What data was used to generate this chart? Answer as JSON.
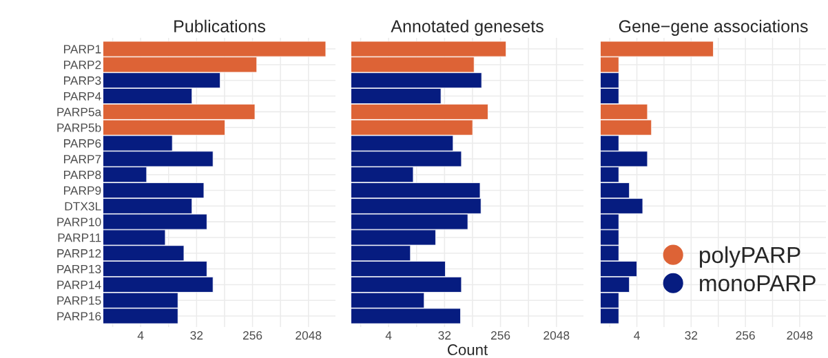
{
  "chart_data": [
    {
      "type": "bar",
      "title": "Publications",
      "orientation": "horizontal",
      "log": "x",
      "grid": true,
      "categories": [
        "PARP1",
        "PARP2",
        "PARP3",
        "PARP4",
        "PARP5a",
        "PARP5b",
        "PARP6",
        "PARP7",
        "PARP8",
        "PARP9",
        "DTX3L",
        "PARP10",
        "PARP11",
        "PARP12",
        "PARP13",
        "PARP14",
        "PARP15",
        "PARP16"
      ],
      "series": [
        {
          "color": "#dd6336",
          "values": [
            3900,
            300,
            null,
            null,
            280,
            92,
            null,
            null,
            null,
            null,
            null,
            null,
            null,
            null,
            null,
            null,
            null,
            null
          ]
        },
        {
          "color": "#061c80",
          "values": [
            null,
            null,
            77,
            27,
            null,
            null,
            13,
            59,
            5,
            42,
            27,
            47,
            10,
            20,
            47,
            59,
            16,
            16
          ]
        }
      ],
      "xlim": [
        1,
        5600
      ],
      "xticks": [
        {
          "value": 1.414,
          "label": null
        },
        4,
        {
          "value": 11.31,
          "label": null
        },
        32,
        {
          "value": 90.5,
          "label": null
        },
        256,
        {
          "value": 724,
          "label": null
        },
        2048
      ]
    },
    {
      "type": "bar",
      "title": "Annotated genesets",
      "xlabel": "Count",
      "orientation": "horizontal",
      "log": "x",
      "grid": true,
      "tick_labels": "x",
      "categories": [
        null,
        null,
        null,
        null,
        null,
        null,
        null,
        null,
        null,
        null,
        null,
        null,
        null,
        null,
        null,
        null,
        null,
        null
      ],
      "series": [
        {
          "color": "#dd6336",
          "values": [
            315,
            96,
            null,
            null,
            161,
            91,
            null,
            null,
            null,
            null,
            null,
            null,
            null,
            null,
            null,
            null,
            null,
            null
          ]
        },
        {
          "color": "#061c80",
          "values": [
            null,
            null,
            127,
            28,
            null,
            null,
            44,
            60,
            10,
            120,
            124,
            76,
            23,
            9,
            33,
            60,
            15,
            58
          ]
        }
      ],
      "xlim": [
        1,
        5600
      ],
      "xticks": [
        {
          "value": 1.414,
          "label": null
        },
        4,
        {
          "value": 11.31,
          "label": null
        },
        32,
        {
          "value": 90.5,
          "label": null
        },
        256,
        {
          "value": 724,
          "label": null
        },
        2048
      ]
    },
    {
      "type": "bar",
      "title": "Gene−gene associations",
      "orientation": "horizontal",
      "log": "x",
      "grid": true,
      "legend": "bottom right",
      "tick_labels": "x",
      "categories": [
        null,
        null,
        null,
        null,
        null,
        null,
        null,
        null,
        null,
        null,
        null,
        null,
        null,
        null,
        null,
        null,
        null,
        null
      ],
      "series": [
        {
          "name": "polyPARP",
          "color": "#dd6336",
          "values": [
            75,
            2,
            null,
            null,
            6,
            7,
            null,
            null,
            null,
            null,
            null,
            null,
            null,
            null,
            null,
            null,
            null,
            null
          ]
        },
        {
          "name": "monoPARP",
          "color": "#061c80",
          "values": [
            null,
            null,
            2,
            2,
            null,
            null,
            2,
            6,
            2,
            3,
            5,
            2,
            2,
            2,
            4,
            3,
            2,
            2
          ]
        }
      ],
      "xlim": [
        1,
        5600
      ],
      "xticks": [
        {
          "value": 1.414,
          "label": null
        },
        4,
        {
          "value": 11.31,
          "label": null
        },
        32,
        {
          "value": 90.5,
          "label": null
        },
        256,
        {
          "value": 724,
          "label": null
        },
        2048
      ]
    }
  ]
}
